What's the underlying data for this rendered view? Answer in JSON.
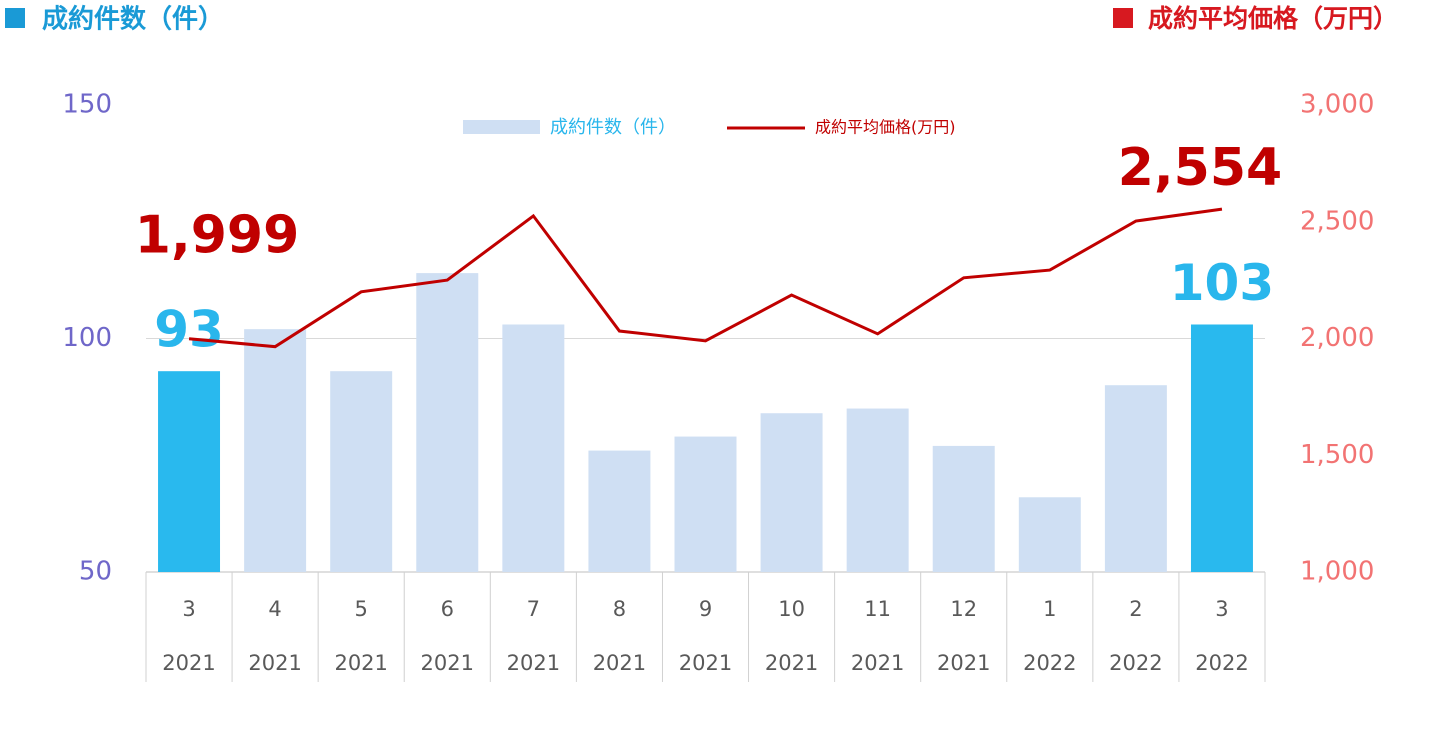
{
  "chart_data": {
    "type": "bar-line",
    "left_heading": "成約件数（件）",
    "left_heading_color": "#1a9ad6",
    "right_heading": "成約平均価格（万円）",
    "right_heading_color": "#d71920",
    "categories": [
      "3",
      "4",
      "5",
      "6",
      "7",
      "8",
      "9",
      "10",
      "11",
      "12",
      "1",
      "2",
      "3"
    ],
    "category_years": [
      "2021",
      "2021",
      "2021",
      "2021",
      "2021",
      "2021",
      "2021",
      "2021",
      "2021",
      "2021",
      "2022",
      "2022",
      "2022"
    ],
    "series": [
      {
        "name": "成約件数（件）",
        "type": "bar",
        "color": "#cfdff3",
        "point_colors": [
          "#29b9ee",
          "#cfdff3",
          "#cfdff3",
          "#cfdff3",
          "#cfdff3",
          "#cfdff3",
          "#cfdff3",
          "#cfdff3",
          "#cfdff3",
          "#cfdff3",
          "#cfdff3",
          "#cfdff3",
          "#29b9ee"
        ],
        "label_color": "#29b6ec",
        "values": [
          93,
          102,
          93,
          114,
          103,
          76,
          79,
          84,
          85,
          77,
          66,
          90,
          103
        ],
        "value_labels": [
          "93",
          null,
          null,
          null,
          null,
          null,
          null,
          null,
          null,
          null,
          null,
          null,
          "103"
        ]
      },
      {
        "name": "成約平均価格(万円)",
        "type": "line",
        "axis": "y2",
        "color": "#c00000",
        "label_color": "#c00000",
        "values": [
          1999,
          1965,
          2200,
          2250,
          2525,
          2032,
          1990,
          2186,
          2020,
          2260,
          2293,
          2503,
          2554
        ],
        "value_labels": [
          "1,999",
          null,
          null,
          null,
          null,
          null,
          null,
          null,
          null,
          null,
          null,
          null,
          "2,554"
        ]
      }
    ],
    "ylim": [
      50,
      150
    ],
    "yticks": [
      50,
      100,
      150
    ],
    "ytick_color": "#6f67c9",
    "y2lim": [
      1000,
      3000
    ],
    "y2ticks": [
      {
        "value": 1000,
        "label": "1,000"
      },
      {
        "value": 1500,
        "label": "1,500"
      },
      {
        "value": 2000,
        "label": "2,000"
      },
      {
        "value": 2500,
        "label": "2,500"
      },
      {
        "value": 3000,
        "label": "3,000"
      }
    ],
    "y2tick_color": "#f27373",
    "grid": true,
    "legend": "top"
  }
}
